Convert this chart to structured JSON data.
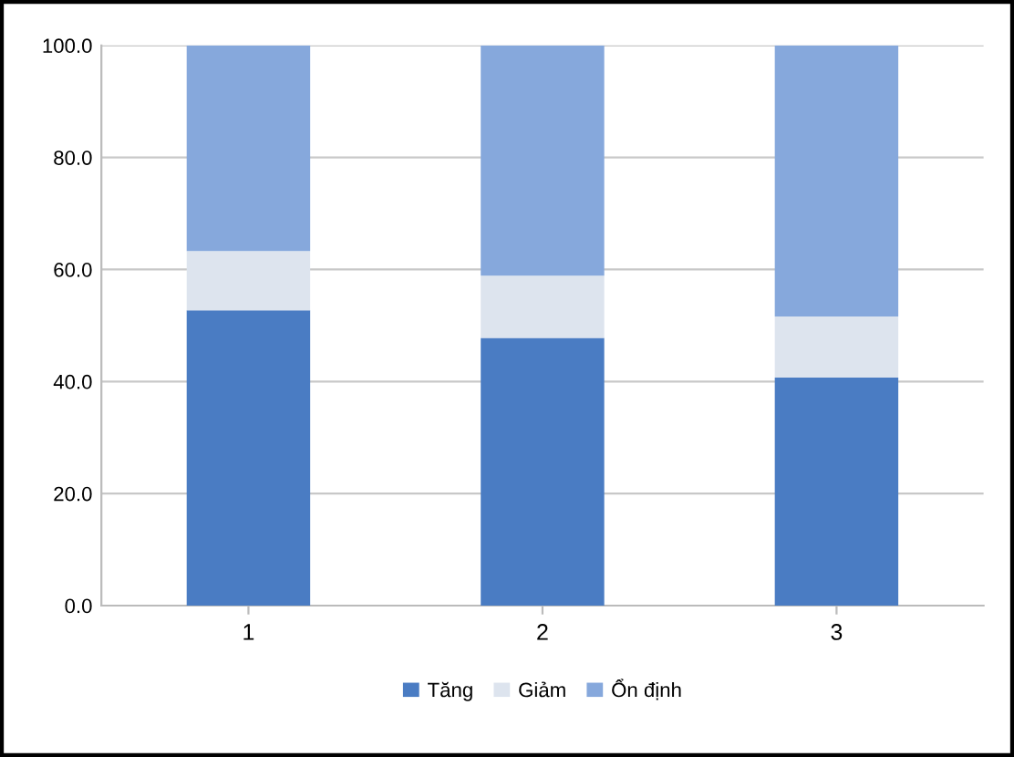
{
  "chart_data": {
    "type": "bar",
    "stacked": true,
    "categories": [
      "1",
      "2",
      "3"
    ],
    "series": [
      {
        "name": "Tăng",
        "color": "#4a7cc3",
        "values": [
          52.7,
          47.8,
          40.7
        ]
      },
      {
        "name": "Giảm",
        "color": "#dde4ee",
        "values": [
          10.6,
          11.1,
          10.9
        ]
      },
      {
        "name": "Ổn định",
        "color": "#86a8dc",
        "values": [
          36.7,
          41.1,
          48.4
        ]
      }
    ],
    "ylim": [
      0,
      100
    ],
    "yticks": [
      {
        "value": 0,
        "label": "0.0"
      },
      {
        "value": 20,
        "label": "20.0"
      },
      {
        "value": 40,
        "label": "40.0"
      },
      {
        "value": 60,
        "label": "60.0"
      },
      {
        "value": 80,
        "label": "80.0"
      },
      {
        "value": 100,
        "label": "100.0"
      }
    ],
    "grid": "y",
    "legend": "bottom"
  }
}
